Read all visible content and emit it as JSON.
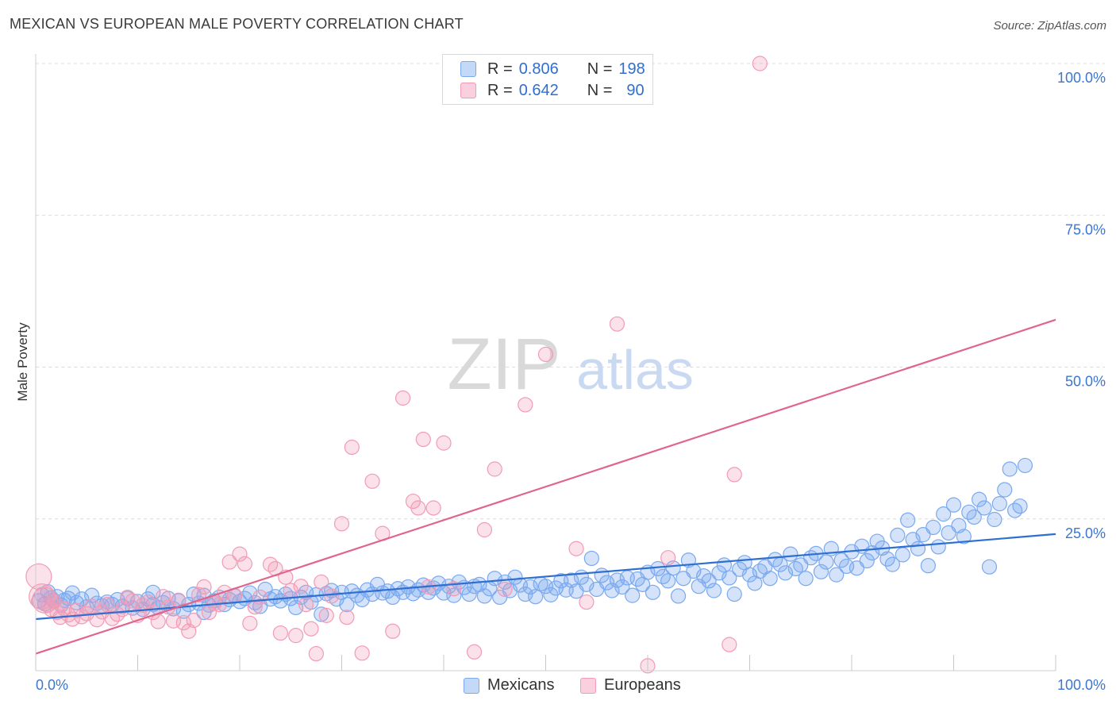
{
  "header": {
    "title": "MEXICAN VS EUROPEAN MALE POVERTY CORRELATION CHART",
    "source": "Source: ZipAtlas.com"
  },
  "legend": {
    "rows": [
      {
        "r_label": "R =",
        "r_value": "0.806",
        "n_label": "N =",
        "n_value": "198",
        "color": "#7aa9ef"
      },
      {
        "r_label": "R =",
        "r_value": "0.642",
        "n_label": "N =",
        "n_value": "90",
        "color": "#f29bb5"
      }
    ]
  },
  "watermark": {
    "part1": "ZIP",
    "part2": "atlas"
  },
  "chart_data": {
    "type": "scatter",
    "title": "MEXICAN VS EUROPEAN MALE POVERTY CORRELATION CHART",
    "xlabel": "",
    "ylabel": "Male Poverty",
    "xlim": [
      0,
      100
    ],
    "ylim": [
      0,
      100
    ],
    "x_tick_labels": [
      "0.0%",
      "100.0%"
    ],
    "y_tick_labels": [
      "25.0%",
      "50.0%",
      "75.0%",
      "100.0%"
    ],
    "y_ticks": [
      25,
      50,
      75,
      100
    ],
    "grid": true,
    "legend_position": "bottom-center",
    "series": [
      {
        "name": "Mexicans",
        "color": "#7aa9ef",
        "line_color": "#2f6fd0",
        "r": 0.806,
        "n": 198,
        "trend": {
          "x": [
            0,
            100
          ],
          "y": [
            8.5,
            22.5
          ]
        },
        "points": [
          [
            0.3,
            11.5
          ],
          [
            0.6,
            12.5
          ],
          [
            0.9,
            11
          ],
          [
            1.2,
            13
          ],
          [
            1.5,
            12
          ],
          [
            1.8,
            11.5
          ],
          [
            2.1,
            12.2
          ],
          [
            2.5,
            10.8
          ],
          [
            2.8,
            11.6
          ],
          [
            3.2,
            11.9
          ],
          [
            3.6,
            12.8
          ],
          [
            4,
            11.2
          ],
          [
            4.5,
            11.8
          ],
          [
            5,
            10.5
          ],
          [
            5.5,
            12.4
          ],
          [
            6,
            11.1
          ],
          [
            6.5,
            10.7
          ],
          [
            7,
            11.3
          ],
          [
            7.5,
            10.9
          ],
          [
            8,
            11.7
          ],
          [
            8.5,
            10.6
          ],
          [
            9,
            11.9
          ],
          [
            9.5,
            10.3
          ],
          [
            10,
            11.4
          ],
          [
            10.5,
            10.1
          ],
          [
            11,
            11.8
          ],
          [
            11.5,
            10.9
          ],
          [
            12,
            10.4
          ],
          [
            12.5,
            11.2
          ],
          [
            13,
            11.9
          ],
          [
            13.5,
            10.2
          ],
          [
            14,
            11.5
          ],
          [
            14.5,
            9.8
          ],
          [
            15,
            10.9
          ],
          [
            15.5,
            12.6
          ],
          [
            16,
            11.1
          ],
          [
            16.5,
            9.6
          ],
          [
            17,
            10.8
          ],
          [
            17.5,
            11.5
          ],
          [
            18,
            12.1
          ],
          [
            18.5,
            10.9
          ],
          [
            19,
            11.7
          ],
          [
            19.5,
            12.3
          ],
          [
            20,
            11.4
          ],
          [
            20.5,
            11.9
          ],
          [
            21,
            12.8
          ],
          [
            21.5,
            11.2
          ],
          [
            22,
            10.6
          ],
          [
            22.5,
            13.4
          ],
          [
            23,
            11.8
          ],
          [
            23.5,
            12.2
          ],
          [
            24,
            11.5
          ],
          [
            24.5,
            12.6
          ],
          [
            25,
            11.9
          ],
          [
            25.5,
            10.4
          ],
          [
            26,
            12.1
          ],
          [
            26.5,
            12.9
          ],
          [
            27,
            11.3
          ],
          [
            27.5,
            12.5
          ],
          [
            28,
            9.3
          ],
          [
            28.5,
            12.7
          ],
          [
            29,
            13.2
          ],
          [
            29.5,
            11.8
          ],
          [
            30,
            12.9
          ],
          [
            30.5,
            10.9
          ],
          [
            31,
            13.1
          ],
          [
            31.5,
            12.4
          ],
          [
            32,
            11.7
          ],
          [
            32.5,
            13.3
          ],
          [
            33,
            12.6
          ],
          [
            33.5,
            14.2
          ],
          [
            34,
            12.8
          ],
          [
            34.5,
            13.1
          ],
          [
            35,
            12.1
          ],
          [
            35.5,
            13.5
          ],
          [
            36,
            12.9
          ],
          [
            36.5,
            13.8
          ],
          [
            37,
            12.7
          ],
          [
            37.5,
            13.3
          ],
          [
            38,
            14.1
          ],
          [
            38.5,
            12.9
          ],
          [
            39,
            13.6
          ],
          [
            39.5,
            14.4
          ],
          [
            40,
            12.8
          ],
          [
            40.5,
            13.9
          ],
          [
            41,
            12.4
          ],
          [
            41.5,
            14.6
          ],
          [
            42,
            13.7
          ],
          [
            42.5,
            12.6
          ],
          [
            43,
            13.9
          ],
          [
            43.5,
            14.2
          ],
          [
            44,
            12.3
          ],
          [
            44.5,
            13.5
          ],
          [
            45,
            15.2
          ],
          [
            45.5,
            12.1
          ],
          [
            46,
            14.6
          ],
          [
            46.5,
            13.2
          ],
          [
            47,
            15.4
          ],
          [
            47.5,
            14.1
          ],
          [
            48,
            12.6
          ],
          [
            48.5,
            13.8
          ],
          [
            49,
            12.2
          ],
          [
            49.5,
            14.3
          ],
          [
            50,
            13.9
          ],
          [
            50.5,
            12.5
          ],
          [
            51,
            13.6
          ],
          [
            51.5,
            14.8
          ],
          [
            52,
            13.3
          ],
          [
            52.5,
            14.9
          ],
          [
            53,
            13.1
          ],
          [
            53.5,
            15.4
          ],
          [
            54,
            14.2
          ],
          [
            54.5,
            18.5
          ],
          [
            55,
            13.4
          ],
          [
            55.5,
            15.7
          ],
          [
            56,
            14.5
          ],
          [
            56.5,
            13.2
          ],
          [
            57,
            14.9
          ],
          [
            57.5,
            13.8
          ],
          [
            58,
            15.3
          ],
          [
            58.5,
            12.4
          ],
          [
            59,
            15.1
          ],
          [
            59.5,
            14.2
          ],
          [
            60,
            16.2
          ],
          [
            60.5,
            12.9
          ],
          [
            61,
            16.8
          ],
          [
            61.5,
            15.5
          ],
          [
            62,
            14.8
          ],
          [
            62.5,
            16.9
          ],
          [
            63,
            12.3
          ],
          [
            63.5,
            15.2
          ],
          [
            64,
            18.2
          ],
          [
            64.5,
            16.4
          ],
          [
            65,
            13.9
          ],
          [
            65.5,
            15.6
          ],
          [
            66,
            14.8
          ],
          [
            66.5,
            13.2
          ],
          [
            67,
            16.1
          ],
          [
            67.5,
            17.4
          ],
          [
            68,
            15.3
          ],
          [
            68.5,
            12.6
          ],
          [
            69,
            16.7
          ],
          [
            69.5,
            17.8
          ],
          [
            70,
            15.8
          ],
          [
            70.5,
            14.4
          ],
          [
            71,
            16.4
          ],
          [
            71.5,
            17.1
          ],
          [
            72,
            15.2
          ],
          [
            72.5,
            18.3
          ],
          [
            73,
            17.5
          ],
          [
            73.5,
            16.1
          ],
          [
            74,
            19.2
          ],
          [
            74.5,
            16.8
          ],
          [
            75,
            17.4
          ],
          [
            75.5,
            15.2
          ],
          [
            76,
            18.6
          ],
          [
            76.5,
            19.3
          ],
          [
            77,
            16.3
          ],
          [
            77.5,
            17.9
          ],
          [
            78,
            20.1
          ],
          [
            78.5,
            15.8
          ],
          [
            79,
            18.2
          ],
          [
            79.5,
            17.2
          ],
          [
            80,
            19.6
          ],
          [
            80.5,
            16.9
          ],
          [
            81,
            20.5
          ],
          [
            81.5,
            18.1
          ],
          [
            82,
            19.4
          ],
          [
            82.5,
            21.3
          ],
          [
            83,
            20.2
          ],
          [
            83.5,
            18.4
          ],
          [
            84,
            17.5
          ],
          [
            84.5,
            22.3
          ],
          [
            85,
            19.1
          ],
          [
            85.5,
            24.8
          ],
          [
            86,
            21.6
          ],
          [
            86.5,
            20.1
          ],
          [
            87,
            22.4
          ],
          [
            87.5,
            17.3
          ],
          [
            88,
            23.6
          ],
          [
            88.5,
            20.4
          ],
          [
            89,
            25.8
          ],
          [
            89.5,
            22.7
          ],
          [
            90,
            27.3
          ],
          [
            90.5,
            23.9
          ],
          [
            91,
            22.1
          ],
          [
            91.5,
            26.1
          ],
          [
            92,
            25.3
          ],
          [
            92.5,
            28.2
          ],
          [
            93,
            26.8
          ],
          [
            93.5,
            17.1
          ],
          [
            94,
            24.9
          ],
          [
            94.5,
            27.5
          ],
          [
            95,
            29.8
          ],
          [
            95.5,
            33.2
          ],
          [
            96,
            26.4
          ],
          [
            96.5,
            27.1
          ],
          [
            97,
            33.8
          ],
          [
            11.5,
            12.9
          ],
          [
            16.5,
            12.4
          ]
        ]
      },
      {
        "name": "Europeans",
        "color": "#f29bb5",
        "line_color": "#e0648c",
        "r": 0.642,
        "n": 90,
        "trend": {
          "x": [
            0,
            100
          ],
          "y": [
            2.8,
            57.8
          ]
        },
        "points": [
          [
            0.3,
            15.5
          ],
          [
            0.6,
            12.2
          ],
          [
            0.9,
            11.6
          ],
          [
            1.2,
            10.8
          ],
          [
            1.5,
            10.1
          ],
          [
            1.8,
            11.4
          ],
          [
            2.1,
            9.6
          ],
          [
            2.4,
            8.8
          ],
          [
            2.8,
            10.2
          ],
          [
            3.2,
            9.2
          ],
          [
            3.6,
            8.5
          ],
          [
            4,
            9.9
          ],
          [
            4.5,
            8.9
          ],
          [
            5,
            9.4
          ],
          [
            5.5,
            10.6
          ],
          [
            6,
            8.4
          ],
          [
            6.5,
            9.7
          ],
          [
            7,
            10.9
          ],
          [
            7.5,
            8.6
          ],
          [
            8,
            9.3
          ],
          [
            8.5,
            10.1
          ],
          [
            9,
            12.1
          ],
          [
            9.5,
            11.5
          ],
          [
            10,
            9.1
          ],
          [
            10.5,
            10.8
          ],
          [
            11,
            11.3
          ],
          [
            11.5,
            9.6
          ],
          [
            12,
            8.1
          ],
          [
            12.5,
            12.2
          ],
          [
            13,
            10.5
          ],
          [
            13.5,
            8.2
          ],
          [
            14,
            11.6
          ],
          [
            14.5,
            7.9
          ],
          [
            15,
            6.5
          ],
          [
            15.5,
            8.3
          ],
          [
            16,
            12.5
          ],
          [
            16.5,
            13.8
          ],
          [
            17,
            9.6
          ],
          [
            17.5,
            11.1
          ],
          [
            18,
            10.9
          ],
          [
            18.5,
            12.9
          ],
          [
            19,
            17.9
          ],
          [
            19.5,
            12.4
          ],
          [
            20,
            19.2
          ],
          [
            20.5,
            17.6
          ],
          [
            21,
            7.8
          ],
          [
            21.5,
            10.5
          ],
          [
            22,
            12.1
          ],
          [
            23,
            17.5
          ],
          [
            23.5,
            16.8
          ],
          [
            24,
            6.2
          ],
          [
            24.5,
            15.4
          ],
          [
            25,
            13.2
          ],
          [
            25.5,
            5.8
          ],
          [
            26,
            13.9
          ],
          [
            26.5,
            10.9
          ],
          [
            27,
            6.9
          ],
          [
            27.5,
            2.8
          ],
          [
            28,
            14.6
          ],
          [
            28.5,
            9.1
          ],
          [
            29,
            12.3
          ],
          [
            30,
            24.2
          ],
          [
            30.5,
            8.8
          ],
          [
            31,
            36.8
          ],
          [
            32,
            2.9
          ],
          [
            33,
            31.2
          ],
          [
            34,
            22.6
          ],
          [
            35,
            6.5
          ],
          [
            36,
            44.9
          ],
          [
            37,
            27.9
          ],
          [
            37.5,
            26.8
          ],
          [
            38,
            38.1
          ],
          [
            38.5,
            13.8
          ],
          [
            39,
            26.8
          ],
          [
            40,
            37.5
          ],
          [
            41,
            13.5
          ],
          [
            43,
            3.1
          ],
          [
            44,
            23.2
          ],
          [
            45,
            33.2
          ],
          [
            46,
            13.4
          ],
          [
            48,
            43.8
          ],
          [
            50,
            52.1
          ],
          [
            53,
            20.1
          ],
          [
            54,
            11.3
          ],
          [
            57,
            57.1
          ],
          [
            60,
            0.8
          ],
          [
            62,
            18.6
          ],
          [
            68,
            4.3
          ],
          [
            68.5,
            32.3
          ],
          [
            71,
            100
          ]
        ]
      }
    ]
  }
}
